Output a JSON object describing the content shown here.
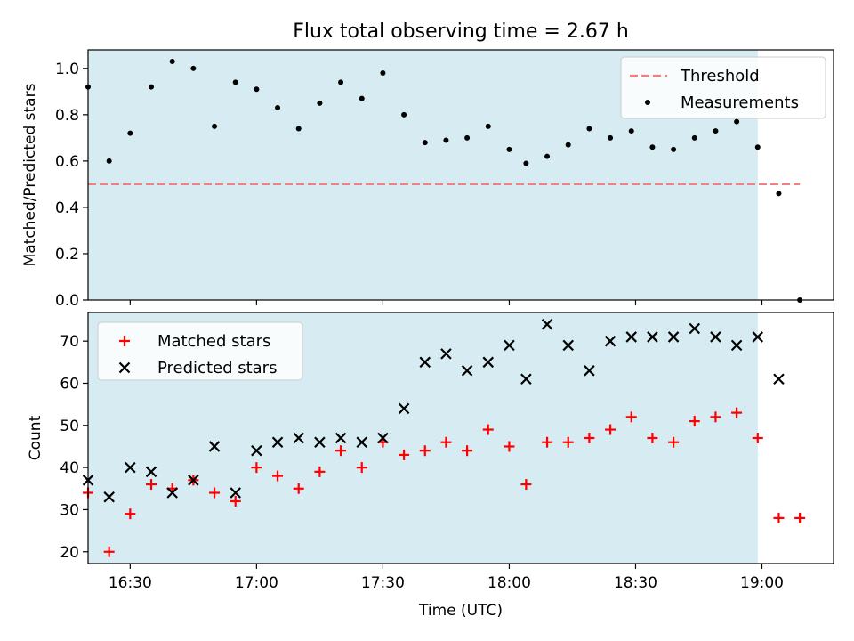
{
  "chart_data": [
    {
      "type": "scatter",
      "title": "Flux total observing time = 2.67 h",
      "xlabel": "",
      "ylabel": "Matched/Predicted stars",
      "xlim": [
        "16:20",
        "19:17"
      ],
      "ylim": [
        0,
        1.08
      ],
      "yticks": [
        "0.0",
        "0.2",
        "0.4",
        "0.6",
        "0.8",
        "1.0"
      ],
      "legend_position": "top-right",
      "shaded_span": {
        "start": "16:20",
        "end": "18:59",
        "color": "#add8e6"
      },
      "threshold": {
        "name": "Threshold",
        "value": 0.5,
        "start": "16:20",
        "end": "19:09",
        "color": "#f08080"
      },
      "series": [
        {
          "name": "Measurements",
          "color": "#000000",
          "marker": "dot",
          "points": [
            [
              "16:20",
              0.92
            ],
            [
              "16:25",
              0.6
            ],
            [
              "16:30",
              0.72
            ],
            [
              "16:35",
              0.92
            ],
            [
              "16:40",
              1.03
            ],
            [
              "16:45",
              1.0
            ],
            [
              "16:50",
              0.75
            ],
            [
              "16:55",
              0.94
            ],
            [
              "17:00",
              0.91
            ],
            [
              "17:05",
              0.83
            ],
            [
              "17:10",
              0.74
            ],
            [
              "17:15",
              0.85
            ],
            [
              "17:20",
              0.94
            ],
            [
              "17:25",
              0.87
            ],
            [
              "17:30",
              0.98
            ],
            [
              "17:35",
              0.8
            ],
            [
              "17:40",
              0.68
            ],
            [
              "17:45",
              0.69
            ],
            [
              "17:50",
              0.7
            ],
            [
              "17:55",
              0.75
            ],
            [
              "18:00",
              0.65
            ],
            [
              "18:04",
              0.59
            ],
            [
              "18:09",
              0.62
            ],
            [
              "18:14",
              0.67
            ],
            [
              "18:19",
              0.74
            ],
            [
              "18:24",
              0.7
            ],
            [
              "18:29",
              0.73
            ],
            [
              "18:34",
              0.66
            ],
            [
              "18:39",
              0.65
            ],
            [
              "18:44",
              0.7
            ],
            [
              "18:49",
              0.73
            ],
            [
              "18:54",
              0.77
            ],
            [
              "18:59",
              0.66
            ],
            [
              "19:04",
              0.46
            ],
            [
              "19:09",
              0.0
            ]
          ]
        }
      ]
    },
    {
      "type": "scatter",
      "title": "",
      "xlabel": "Time (UTC)",
      "ylabel": "Count",
      "xlim": [
        "16:20",
        "19:17"
      ],
      "ylim": [
        17.2,
        76.8
      ],
      "xticks": [
        "16:30",
        "17:00",
        "17:30",
        "18:00",
        "18:30",
        "19:00"
      ],
      "yticks": [
        "20",
        "30",
        "40",
        "50",
        "60",
        "70"
      ],
      "legend_position": "top-left",
      "shaded_span": {
        "start": "16:20",
        "end": "18:59",
        "color": "#add8e6"
      },
      "series": [
        {
          "name": "Matched stars",
          "color": "#ff0000",
          "marker": "plus",
          "points": [
            [
              "16:20",
              34
            ],
            [
              "16:25",
              20
            ],
            [
              "16:30",
              29
            ],
            [
              "16:35",
              36
            ],
            [
              "16:40",
              35
            ],
            [
              "16:45",
              37
            ],
            [
              "16:50",
              34
            ],
            [
              "16:55",
              32
            ],
            [
              "17:00",
              40
            ],
            [
              "17:05",
              38
            ],
            [
              "17:10",
              35
            ],
            [
              "17:15",
              39
            ],
            [
              "17:20",
              44
            ],
            [
              "17:25",
              40
            ],
            [
              "17:30",
              46
            ],
            [
              "17:35",
              43
            ],
            [
              "17:40",
              44
            ],
            [
              "17:45",
              46
            ],
            [
              "17:50",
              44
            ],
            [
              "17:55",
              49
            ],
            [
              "18:00",
              45
            ],
            [
              "18:04",
              36
            ],
            [
              "18:09",
              46
            ],
            [
              "18:14",
              46
            ],
            [
              "18:19",
              47
            ],
            [
              "18:24",
              49
            ],
            [
              "18:29",
              52
            ],
            [
              "18:34",
              47
            ],
            [
              "18:39",
              46
            ],
            [
              "18:44",
              51
            ],
            [
              "18:49",
              52
            ],
            [
              "18:54",
              53
            ],
            [
              "18:59",
              47
            ],
            [
              "19:04",
              28
            ],
            [
              "19:09",
              28
            ]
          ]
        },
        {
          "name": "Predicted stars",
          "color": "#000000",
          "marker": "x",
          "points": [
            [
              "16:20",
              37
            ],
            [
              "16:25",
              33
            ],
            [
              "16:30",
              40
            ],
            [
              "16:35",
              39
            ],
            [
              "16:40",
              34
            ],
            [
              "16:45",
              37
            ],
            [
              "16:50",
              45
            ],
            [
              "16:55",
              34
            ],
            [
              "17:00",
              44
            ],
            [
              "17:05",
              46
            ],
            [
              "17:10",
              47
            ],
            [
              "17:15",
              46
            ],
            [
              "17:20",
              47
            ],
            [
              "17:25",
              46
            ],
            [
              "17:30",
              47
            ],
            [
              "17:35",
              54
            ],
            [
              "17:40",
              65
            ],
            [
              "17:45",
              67
            ],
            [
              "17:50",
              63
            ],
            [
              "17:55",
              65
            ],
            [
              "18:00",
              69
            ],
            [
              "18:04",
              61
            ],
            [
              "18:09",
              74
            ],
            [
              "18:14",
              69
            ],
            [
              "18:19",
              63
            ],
            [
              "18:24",
              70
            ],
            [
              "18:29",
              71
            ],
            [
              "18:34",
              71
            ],
            [
              "18:39",
              71
            ],
            [
              "18:44",
              73
            ],
            [
              "18:49",
              71
            ],
            [
              "18:54",
              69
            ],
            [
              "18:59",
              71
            ],
            [
              "19:04",
              61
            ]
          ]
        }
      ]
    }
  ]
}
